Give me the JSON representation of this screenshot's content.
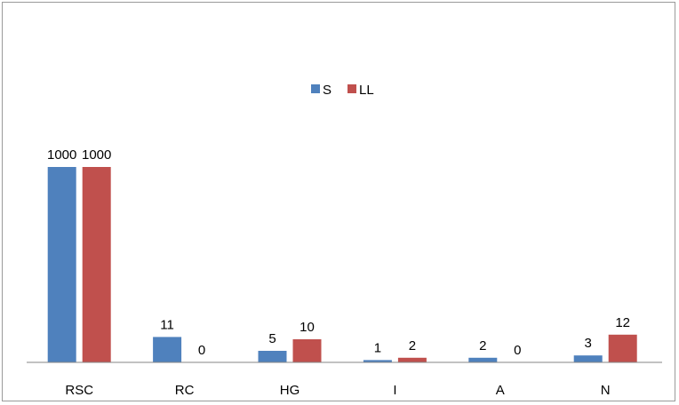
{
  "chart_data": {
    "type": "bar",
    "title": "",
    "xlabel": "",
    "ylabel": "",
    "categories": [
      "RSC",
      "RC",
      "HG",
      "I",
      "A",
      "N"
    ],
    "series": [
      {
        "name": "S",
        "color": "#4f81bd",
        "values": [
          1000,
          11,
          5,
          1,
          2,
          3
        ]
      },
      {
        "name": "LL",
        "color": "#c0504d",
        "values": [
          1000,
          0,
          10,
          2,
          0,
          12
        ]
      }
    ],
    "axis_break": {
      "from": 12,
      "to": 1000
    },
    "legend": "top-center",
    "grid": false,
    "data_labels": true
  }
}
